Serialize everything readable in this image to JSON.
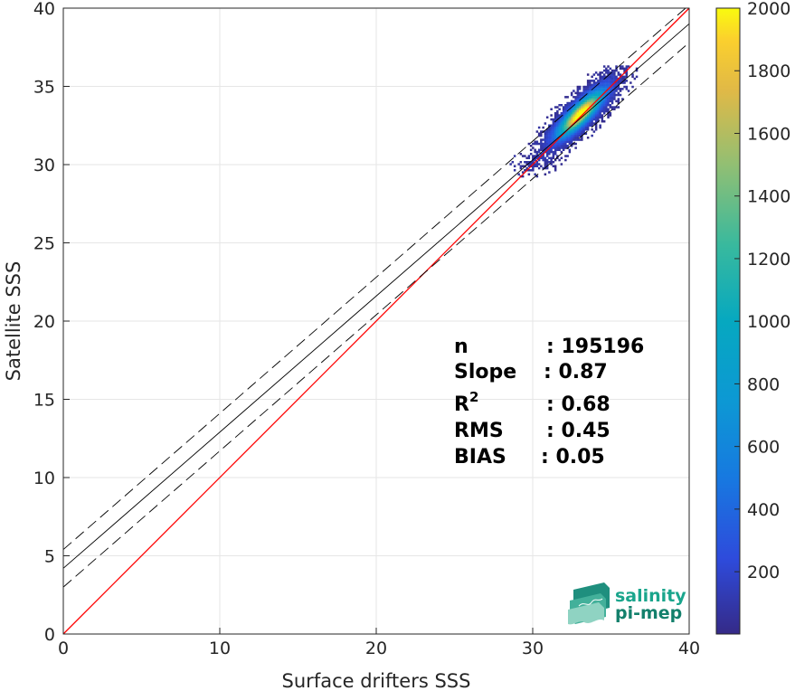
{
  "chart_data": {
    "type": "heatmap",
    "title": "",
    "xlabel": "Surface drifters SSS",
    "ylabel": "Satellite SSS",
    "xlim": [
      0,
      40
    ],
    "ylim": [
      0,
      40
    ],
    "xticks": [
      0,
      10,
      20,
      30,
      40
    ],
    "yticks": [
      0,
      5,
      10,
      15,
      20,
      25,
      30,
      35,
      40
    ],
    "grid": true,
    "colorbar": {
      "range": [
        1,
        2000
      ],
      "ticks": [
        200,
        400,
        600,
        800,
        1000,
        1200,
        1400,
        1600,
        1800,
        2000
      ],
      "colormap": "parula"
    },
    "density_center": [
      33.0,
      33.2
    ],
    "lines": [
      {
        "role": "identity",
        "color": "#ff0000",
        "style": "solid",
        "intercept": 0.0,
        "slope": 1.0
      },
      {
        "role": "regression",
        "color": "#000000",
        "style": "solid",
        "intercept": 4.2,
        "slope": 0.87
      },
      {
        "role": "regression-upper",
        "color": "#000000",
        "style": "dashed",
        "intercept": 5.4,
        "slope": 0.87
      },
      {
        "role": "regression-lower",
        "color": "#000000",
        "style": "dashed",
        "intercept": 3.0,
        "slope": 0.87
      }
    ],
    "stats": [
      {
        "label": "n",
        "value": ": 195196"
      },
      {
        "label": "Slope",
        "value": ": 0.87"
      },
      {
        "label": "R",
        "sup": "2",
        "value": ": 0.68"
      },
      {
        "label": "RMS",
        "value": ": 0.45"
      },
      {
        "label": "BIAS",
        "value": ": 0.05"
      }
    ]
  },
  "logo": {
    "line1": "salinity",
    "line2": "pi-mep"
  },
  "colors": {
    "identity_line": "#ff0000",
    "grid": "#e6e6e6",
    "axis": "#262626",
    "logo_text": "#1aa58c"
  }
}
